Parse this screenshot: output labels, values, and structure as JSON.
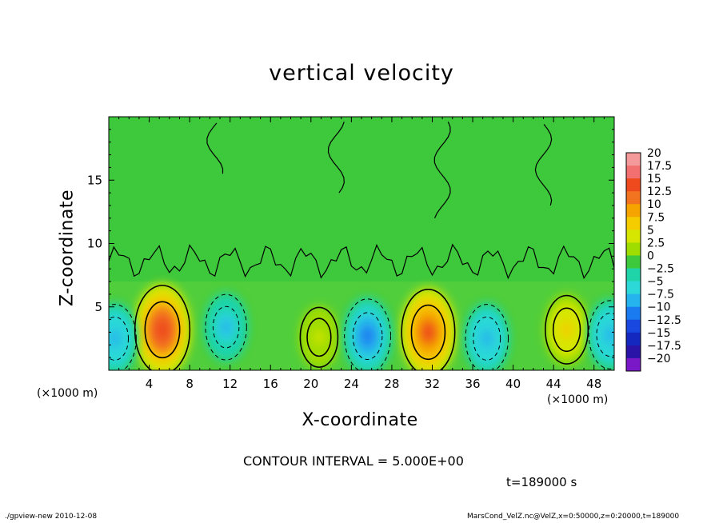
{
  "chart_data": {
    "type": "heatmap",
    "title": "vertical velocity",
    "xlabel": "X-coordinate",
    "ylabel": "Z-coordinate",
    "x_unit_left": "(×1000 m)",
    "x_unit_right": "(×1000 m)",
    "xlim": [
      0,
      50
    ],
    "ylim": [
      0,
      20
    ],
    "x_ticks": [
      4,
      8,
      12,
      16,
      20,
      24,
      28,
      32,
      36,
      40,
      44,
      48
    ],
    "x_tick_labels": [
      "4",
      "8",
      "12",
      "16",
      "20",
      "24",
      "28",
      "32",
      "36",
      "40",
      "44",
      "48"
    ],
    "y_ticks": [
      5,
      10,
      15
    ],
    "y_tick_labels": [
      "5",
      "10",
      "15"
    ],
    "colorbar": {
      "min": -20,
      "max": 20,
      "labels": [
        "20",
        "17.5",
        "15",
        "12.5",
        "10",
        "7.5",
        "5",
        "2.5",
        "0",
        "−2.5",
        "−5",
        "−7.5",
        "−10",
        "−12.5",
        "−15",
        "−17.5",
        "−20"
      ],
      "colors": [
        "#f59a9a",
        "#f27070",
        "#ee4a1e",
        "#f27320",
        "#f5a400",
        "#f5cc00",
        "#d7e600",
        "#9fdc00",
        "#3ec83c",
        "#1fd4a8",
        "#2cd8d8",
        "#26b4ee",
        "#1a7af0",
        "#1848e0",
        "#1428c0",
        "#2a14a8",
        "#7a18c8"
      ]
    },
    "cells": [
      {
        "x": 5.3,
        "z": 3.2,
        "value": 14,
        "kind": "updraft"
      },
      {
        "x": 31.6,
        "z": 3.0,
        "value": 13,
        "kind": "updraft"
      },
      {
        "x": 45.3,
        "z": 3.2,
        "value": 7,
        "kind": "updraft"
      },
      {
        "x": 20.8,
        "z": 2.6,
        "value": 4,
        "kind": "updraft"
      },
      {
        "x": 25.6,
        "z": 2.7,
        "value": -9,
        "kind": "downdraft"
      },
      {
        "x": 37.4,
        "z": 2.5,
        "value": -7,
        "kind": "downdraft"
      },
      {
        "x": 11.6,
        "z": 3.4,
        "value": -6,
        "kind": "downdraft"
      },
      {
        "x": 0.6,
        "z": 2.5,
        "value": -7,
        "kind": "downdraft"
      },
      {
        "x": 49.6,
        "z": 2.8,
        "value": -7,
        "kind": "downdraft"
      }
    ],
    "grid": false
  },
  "annotations": {
    "contour_interval": "CONTOUR INTERVAL = 5.000E+00",
    "time": "t=189000 s",
    "footer_left": "./gpview-new   2010-12-08",
    "footer_right": "MarsCond_VelZ.nc@VelZ,x=0:50000,z=0:20000,t=189000"
  }
}
